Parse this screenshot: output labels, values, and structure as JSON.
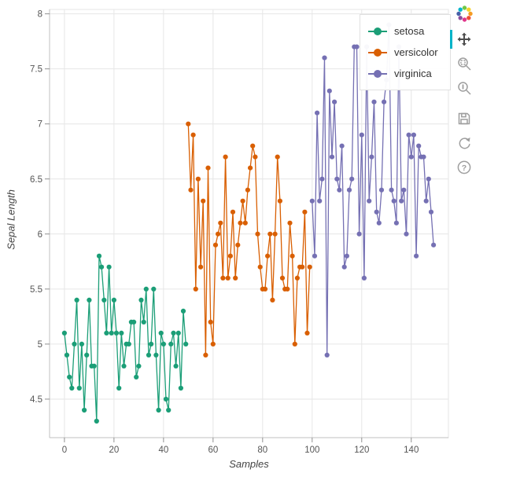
{
  "chart_data": {
    "type": "line",
    "title": "",
    "xlabel": "Samples",
    "ylabel": "Sepal Length",
    "xlim": [
      -6,
      155
    ],
    "ylim": [
      4.15,
      8.04
    ],
    "x_ticks": [
      0,
      20,
      40,
      60,
      80,
      100,
      120,
      140
    ],
    "y_ticks": [
      4.5,
      5,
      5.5,
      6,
      6.5,
      7,
      7.5,
      8
    ],
    "grid": true,
    "legend_position": "top-right-inside",
    "series": [
      {
        "name": "setosa",
        "color": "#1b9e77",
        "x_start": 0,
        "values": [
          5.1,
          4.9,
          4.7,
          4.6,
          5.0,
          5.4,
          4.6,
          5.0,
          4.4,
          4.9,
          5.4,
          4.8,
          4.8,
          4.3,
          5.8,
          5.7,
          5.4,
          5.1,
          5.7,
          5.1,
          5.4,
          5.1,
          4.6,
          5.1,
          4.8,
          5.0,
          5.0,
          5.2,
          5.2,
          4.7,
          4.8,
          5.4,
          5.2,
          5.5,
          4.9,
          5.0,
          5.5,
          4.9,
          4.4,
          5.1,
          5.0,
          4.5,
          4.4,
          5.0,
          5.1,
          4.8,
          5.1,
          4.6,
          5.3,
          5.0
        ]
      },
      {
        "name": "versicolor",
        "color": "#d95f02",
        "x_start": 50,
        "values": [
          7.0,
          6.4,
          6.9,
          5.5,
          6.5,
          5.7,
          6.3,
          4.9,
          6.6,
          5.2,
          5.0,
          5.9,
          6.0,
          6.1,
          5.6,
          6.7,
          5.6,
          5.8,
          6.2,
          5.6,
          5.9,
          6.1,
          6.3,
          6.1,
          6.4,
          6.6,
          6.8,
          6.7,
          6.0,
          5.7,
          5.5,
          5.5,
          5.8,
          6.0,
          5.4,
          6.0,
          6.7,
          6.3,
          5.6,
          5.5,
          5.5,
          6.1,
          5.8,
          5.0,
          5.6,
          5.7,
          5.7,
          6.2,
          5.1,
          5.7
        ]
      },
      {
        "name": "virginica",
        "color": "#7570b3",
        "x_start": 100,
        "values": [
          6.3,
          5.8,
          7.1,
          6.3,
          6.5,
          7.6,
          4.9,
          7.3,
          6.7,
          7.2,
          6.5,
          6.4,
          6.8,
          5.7,
          5.8,
          6.4,
          6.5,
          7.7,
          7.7,
          6.0,
          6.9,
          5.6,
          7.7,
          6.3,
          6.7,
          7.2,
          6.2,
          6.1,
          6.4,
          7.2,
          7.4,
          7.9,
          6.4,
          6.3,
          6.1,
          7.7,
          6.3,
          6.4,
          6.0,
          6.9,
          6.7,
          6.9,
          5.8,
          6.8,
          6.7,
          6.7,
          6.3,
          6.5,
          6.2,
          5.9
        ]
      }
    ]
  },
  "toolbar": {
    "active_tool": "pan",
    "accent_color": "#00b3c8",
    "help_glyph": "?",
    "tools": [
      {
        "name": "pan",
        "active": true
      },
      {
        "name": "box-zoom",
        "active": false
      },
      {
        "name": "wheel-zoom",
        "active": false
      },
      {
        "name": "save",
        "active": false
      },
      {
        "name": "reset",
        "active": false
      },
      {
        "name": "help",
        "active": false
      }
    ]
  },
  "style": {
    "grid_color": "#e6e6e6",
    "axis_line_color": "#c0c0c0",
    "tick_color": "#909090",
    "tick_label_color": "#555555",
    "axis_label_color": "#444444"
  }
}
